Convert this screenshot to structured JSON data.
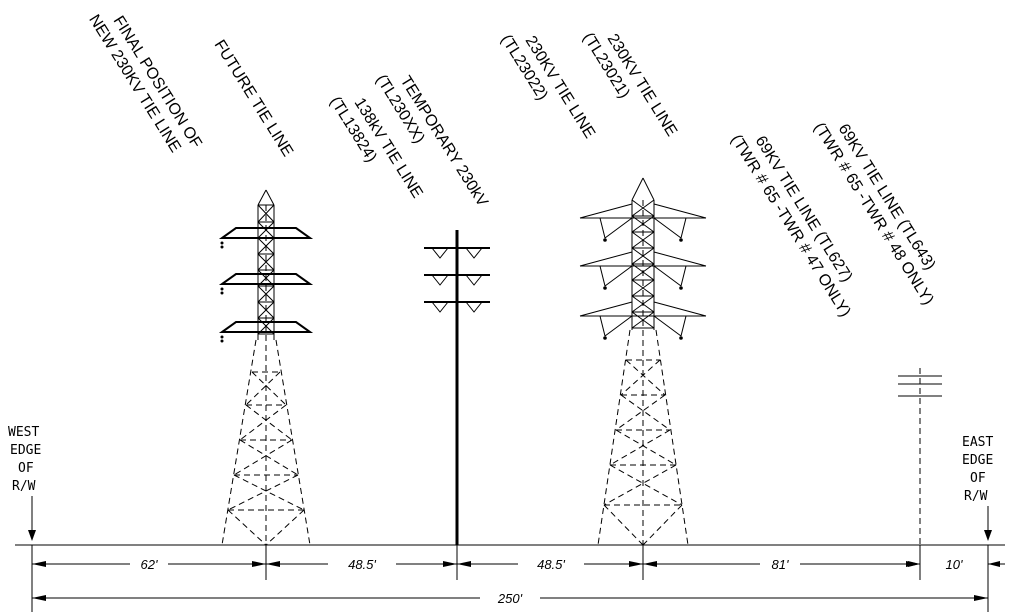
{
  "labels": {
    "final_position": [
      "FINAL POSITION OF",
      "NEW 230KV TIE LINE"
    ],
    "future_tie": [
      "FUTURE TIE LINE"
    ],
    "tie_138": [
      "138kV TIE LINE",
      "(TL13824)"
    ],
    "temp_230": [
      "TEMPORARY 230kV",
      "(TL230XX)"
    ],
    "tie_230_22": [
      "230KV TIE LINE",
      "(TL23022)"
    ],
    "tie_230_21": [
      "230KV TIE LINE",
      "(TL23021)"
    ],
    "tie_69_627": [
      "69KV TIE LINE (TL627)",
      "(TWR # 65 -TWR # 47 ONLY)"
    ],
    "tie_69_643": [
      "69KV TIE LINE (TL643)",
      "(TWR # 65 -TWR # 48 ONLY)"
    ]
  },
  "west_edge": [
    "WEST",
    "EDGE",
    "OF",
    "R/W"
  ],
  "east_edge": [
    "EAST",
    "EDGE",
    "OF",
    "R/W"
  ],
  "dimensions": {
    "d1": "62'",
    "d2": "48.5'",
    "d3": "48.5'",
    "d4": "81'",
    "d5": "10'",
    "total": "250'"
  }
}
